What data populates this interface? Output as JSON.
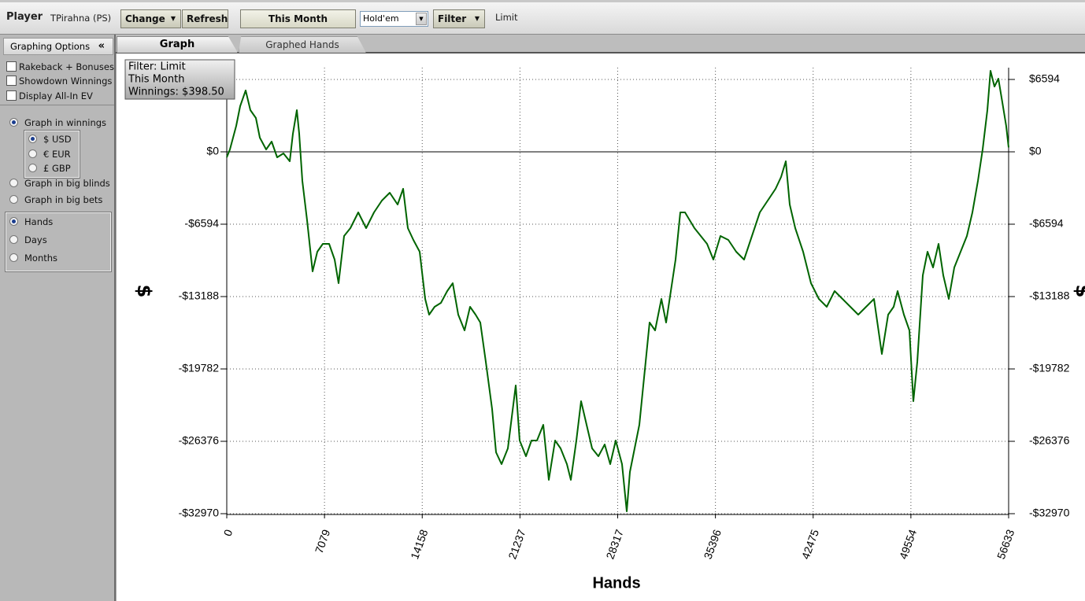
{
  "toolbar": {
    "player_label": "Player",
    "player_name": "TPirahna (PS)",
    "buttons": [
      "Change",
      "Refresh",
      "This Month"
    ],
    "game": "Hold'em",
    "filter": "Filter",
    "limit": "Limit"
  },
  "sidebar": {
    "title": "Graphing Options",
    "collapse": "«",
    "checkboxes": [
      "Rakeback + Bonuses",
      "Showdown Winnings",
      "Display All-In EV"
    ],
    "graph_in": [
      "Graph in winnings",
      "Graph in big blinds",
      "Graph in big bets"
    ],
    "graph_in_selected": 0,
    "currencies": [
      "$ USD",
      "€ EUR",
      "£ GBP"
    ],
    "currency_selected": 0,
    "periods": [
      "Hands",
      "Days",
      "Months"
    ],
    "period_selected": 0
  },
  "tabs": [
    "Graph",
    "Graphed Hands"
  ],
  "chart_data": {
    "type": "line",
    "xlabel": "Hands",
    "ylabel": "$",
    "annotations": [
      "Filter: Limit",
      "This Month",
      "Winnings: $398.50"
    ],
    "color": "#006400",
    "grid": true,
    "x": [
      0,
      228,
      684,
      970,
      1369,
      1711,
      2110,
      2395,
      2852,
      3251,
      3650,
      4106,
      4562,
      4791,
      5076,
      5247,
      5475,
      5817,
      6216,
      6558,
      6958,
      7414,
      7813,
      8098,
      8497,
      8954,
      9524,
      10094,
      10665,
      11235,
      11805,
      12376,
      12775,
      13117,
      13516,
      13972,
      14372,
      14657,
      15056,
      15512,
      15968,
      16368,
      16767,
      17223,
      17622,
      18021,
      18364,
      18763,
      19219,
      19504,
      19903,
      20360,
      20645,
      20930,
      21215,
      21671,
      22071,
      22470,
      22926,
      23325,
      23782,
      24181,
      24637,
      24922,
      25321,
      25664,
      26063,
      26462,
      26918,
      27374,
      27774,
      28173,
      28629,
      28971,
      29199,
      29542,
      29884,
      30226,
      30625,
      31024,
      31481,
      31823,
      32165,
      32507,
      32849,
      33191,
      33534,
      33876,
      34332,
      34788,
      35245,
      35758,
      36328,
      36898,
      37469,
      38039,
      38609,
      39180,
      39750,
      40149,
      40491,
      40776,
      41176,
      41746,
      42316,
      42887,
      43457,
      44027,
      44597,
      45168,
      45738,
      46308,
      46879,
      47449,
      47905,
      48304,
      48590,
      49046,
      49445,
      49730,
      50015,
      50415,
      50757,
      51156,
      51555,
      51897,
      52296,
      52696,
      53152,
      53608,
      54007,
      54407,
      54749,
      55091,
      55319,
      55604,
      55889,
      56174,
      56459,
      56633
    ],
    "values": [
      -502,
      215,
      2365,
      4157,
      5590,
      3799,
      3082,
      1290,
      215,
      932,
      -502,
      -143,
      -860,
      1648,
      3799,
      1648,
      -2652,
      -6235,
      -10894,
      -9102,
      -8385,
      -8385,
      -9819,
      -11969,
      -7669,
      -6952,
      -5519,
      -6952,
      -5519,
      -4444,
      -3727,
      -4802,
      -3368,
      -6952,
      -8027,
      -9102,
      -13402,
      -14836,
      -14119,
      -13761,
      -12686,
      -11969,
      -14836,
      -16269,
      -14119,
      -14836,
      -15552,
      -19136,
      -23436,
      -27378,
      -28453,
      -27020,
      -24153,
      -21286,
      -26303,
      -27736,
      -26303,
      -26303,
      -24869,
      -29886,
      -26303,
      -27020,
      -28453,
      -29886,
      -26303,
      -22719,
      -24869,
      -27020,
      -27736,
      -26661,
      -28453,
      -26303,
      -28453,
      -32753,
      -29170,
      -27020,
      -24869,
      -20569,
      -15552,
      -16269,
      -13402,
      -15552,
      -12686,
      -9819,
      -5519,
      -5519,
      -6235,
      -6952,
      -7669,
      -8385,
      -9819,
      -7669,
      -8027,
      -9102,
      -9819,
      -7669,
      -5519,
      -4444,
      -3368,
      -2293,
      -860,
      -4802,
      -6952,
      -9102,
      -11969,
      -13402,
      -14119,
      -12686,
      -13402,
      -14119,
      -14836,
      -14119,
      -13402,
      -18419,
      -14836,
      -14119,
      -12686,
      -14836,
      -16269,
      -22719,
      -19136,
      -11252,
      -9102,
      -10535,
      -8385,
      -11252,
      -13402,
      -10535,
      -9102,
      -7669,
      -5519,
      -2652,
      215,
      3799,
      7382,
      5949,
      6665,
      4515,
      2365,
      398.5
    ],
    "xlim": [
      0,
      56633
    ],
    "xticks": [
      0,
      7079,
      14158,
      21237,
      28317,
      35396,
      42475,
      49554,
      56633
    ],
    "ylim": [
      -32970,
      7669
    ],
    "yticks": [
      {
        "value": 6594,
        "label": "$6594"
      },
      {
        "value": 0,
        "label": "$0"
      },
      {
        "value": -6594,
        "label": "-$6594"
      },
      {
        "value": -13188,
        "label": "-$13188"
      },
      {
        "value": -19782,
        "label": "-$19782"
      },
      {
        "value": -26376,
        "label": "-$26376"
      },
      {
        "value": -32970,
        "label": "-$32970"
      }
    ]
  }
}
